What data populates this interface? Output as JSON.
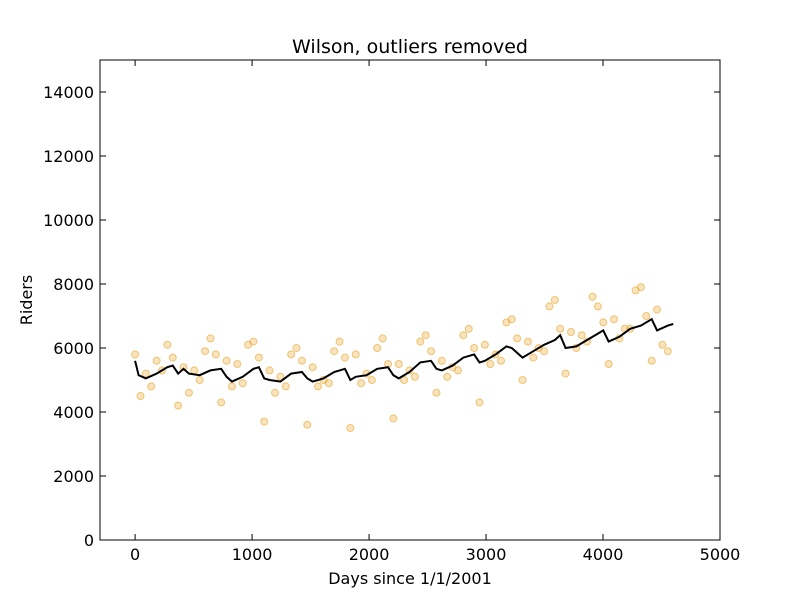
{
  "chart_data": {
    "type": "scatter-line",
    "title": "Wilson, outliers removed",
    "x_label": "Days since 1/1/2001",
    "y_label": "Riders",
    "xlim": [
      -300,
      5000
    ],
    "ylim": [
      0,
      15000
    ],
    "xticks": [
      0,
      1000,
      2000,
      3000,
      4000,
      5000
    ],
    "yticks": [
      0,
      2000,
      4000,
      6000,
      8000,
      10000,
      12000,
      14000
    ],
    "series": [
      {
        "kind": "scatter",
        "color": "#e69500",
        "x": [
          0,
          46,
          92,
          138,
          184,
          230,
          276,
          322,
          368,
          414,
          460,
          506,
          552,
          598,
          644,
          690,
          736,
          782,
          828,
          874,
          920,
          966,
          1012,
          1058,
          1104,
          1150,
          1196,
          1242,
          1288,
          1334,
          1380,
          1426,
          1472,
          1518,
          1564,
          1610,
          1656,
          1702,
          1748,
          1794,
          1840,
          1886,
          1932,
          1978,
          2024,
          2070,
          2116,
          2162,
          2208,
          2254,
          2300,
          2346,
          2392,
          2438,
          2484,
          2530,
          2576,
          2622,
          2668,
          2714,
          2760,
          2806,
          2852,
          2898,
          2944,
          2990,
          3036,
          3082,
          3128,
          3174,
          3220,
          3266,
          3312,
          3358,
          3404,
          3450,
          3496,
          3542,
          3588,
          3634,
          3680,
          3726,
          3772,
          3818,
          3864,
          3910,
          3956,
          4002,
          4048,
          4094,
          4140,
          4186,
          4232,
          4278,
          4324,
          4370,
          4416,
          4462,
          4508,
          4554
        ],
        "values": [
          5800,
          4500,
          5200,
          4800,
          5600,
          5300,
          6100,
          5700,
          4200,
          5400,
          4600,
          5300,
          5000,
          5900,
          6300,
          5800,
          4300,
          5600,
          4800,
          5500,
          4900,
          6100,
          6200,
          5700,
          3700,
          5300,
          4600,
          5100,
          4800,
          5800,
          6000,
          5600,
          3600,
          5400,
          4800,
          5000,
          4900,
          5900,
          6200,
          5700,
          3500,
          5800,
          4900,
          5200,
          5000,
          6000,
          6300,
          5500,
          3800,
          5500,
          5000,
          5300,
          5100,
          6200,
          6400,
          5900,
          4600,
          5600,
          5100,
          5400,
          5300,
          6400,
          6600,
          6000,
          4300,
          6100,
          5500,
          5800,
          5600,
          6800,
          6900,
          6300,
          5000,
          6200,
          5700,
          6000,
          5900,
          7300,
          7500,
          6600,
          5200,
          6500,
          6000,
          6400,
          6200,
          7600,
          7300,
          6800,
          5500,
          6900,
          6300,
          6600,
          6600,
          7800,
          7900,
          7000,
          5600,
          7200,
          6100,
          5900
        ]
      },
      {
        "kind": "line",
        "color": "#000000",
        "x": [
          0,
          30,
          92,
          184,
          276,
          322,
          368,
          414,
          460,
          552,
          644,
          736,
          782,
          828,
          920,
          1012,
          1058,
          1104,
          1150,
          1242,
          1334,
          1426,
          1472,
          1518,
          1610,
          1702,
          1794,
          1840,
          1886,
          1978,
          2070,
          2162,
          2208,
          2254,
          2346,
          2438,
          2530,
          2576,
          2622,
          2714,
          2806,
          2898,
          2944,
          2990,
          3082,
          3174,
          3220,
          3312,
          3404,
          3496,
          3588,
          3634,
          3680,
          3772,
          3864,
          3956,
          4002,
          4048,
          4140,
          4232,
          4324,
          4416,
          4462,
          4554,
          4600
        ],
        "values": [
          5600,
          5150,
          5050,
          5200,
          5400,
          5450,
          5200,
          5350,
          5200,
          5150,
          5300,
          5350,
          5100,
          4950,
          5100,
          5350,
          5400,
          5050,
          5000,
          4950,
          5200,
          5250,
          5050,
          4950,
          5050,
          5250,
          5350,
          5000,
          5100,
          5150,
          5350,
          5400,
          5150,
          5050,
          5250,
          5550,
          5600,
          5350,
          5300,
          5450,
          5700,
          5800,
          5550,
          5600,
          5800,
          6050,
          6000,
          5700,
          5900,
          6100,
          6250,
          6400,
          6000,
          6050,
          6250,
          6450,
          6550,
          6200,
          6350,
          6600,
          6700,
          6900,
          6550,
          6700,
          6750
        ]
      }
    ]
  }
}
